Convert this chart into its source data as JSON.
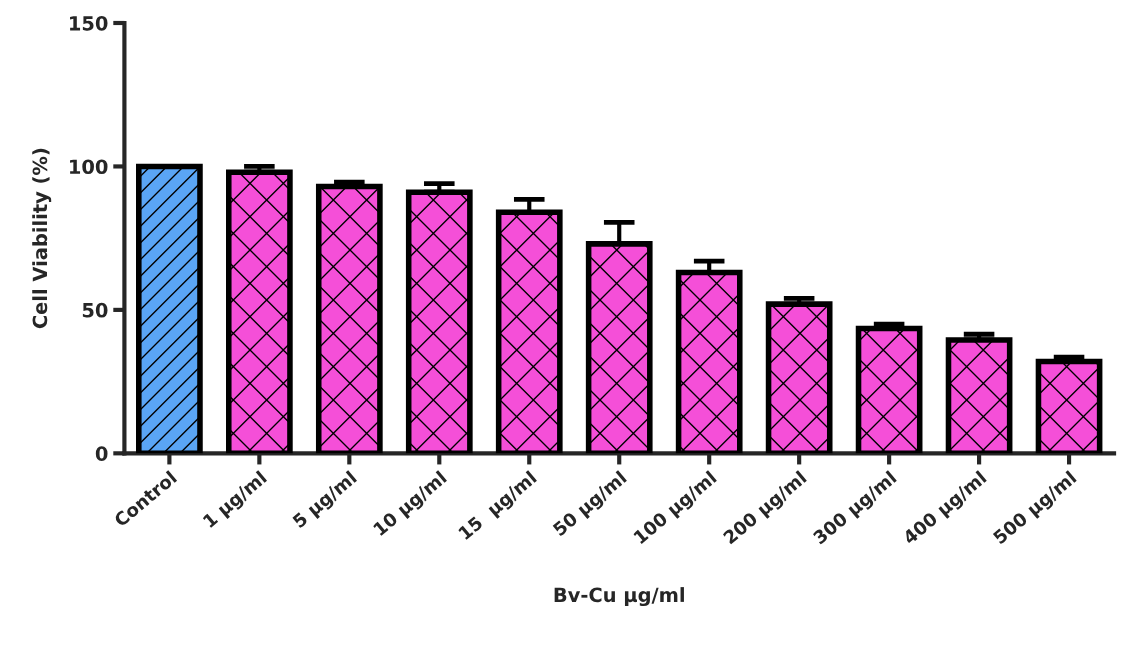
{
  "chart_data": {
    "type": "bar",
    "xlabel": "Bv-Cu µg/ml",
    "ylabel": "Cell Viability (%)",
    "categories": [
      "Control",
      "1 µg/ml",
      "5 µg/ml",
      "10 µg/ml",
      "15  µg/ml",
      "50 µg/ml",
      "100 µg/ml",
      "200 µg/ml",
      "300 µg/ml",
      "400 µg/ml",
      "500 µg/ml"
    ],
    "values": [
      100,
      98,
      93,
      91,
      84,
      73,
      63,
      52,
      43.5,
      39.5,
      32
    ],
    "errors": [
      null,
      [
        98,
        100
      ],
      [
        93,
        94.5
      ],
      [
        91,
        94
      ],
      [
        84,
        88.5
      ],
      [
        73,
        80.5
      ],
      [
        63,
        67
      ],
      [
        52,
        54
      ],
      [
        43.5,
        45
      ],
      [
        39.5,
        41.5
      ],
      [
        32,
        33.5
      ]
    ],
    "colors": [
      "#5aa5f5",
      "#f54fd8",
      "#f54fd8",
      "#f54fd8",
      "#f54fd8",
      "#f54fd8",
      "#f54fd8",
      "#f54fd8",
      "#f54fd8",
      "#f54fd8",
      "#f54fd8"
    ],
    "ylim": [
      0,
      150
    ],
    "yticks": [
      0,
      50,
      100,
      150
    ],
    "grid": false,
    "legend": false
  }
}
